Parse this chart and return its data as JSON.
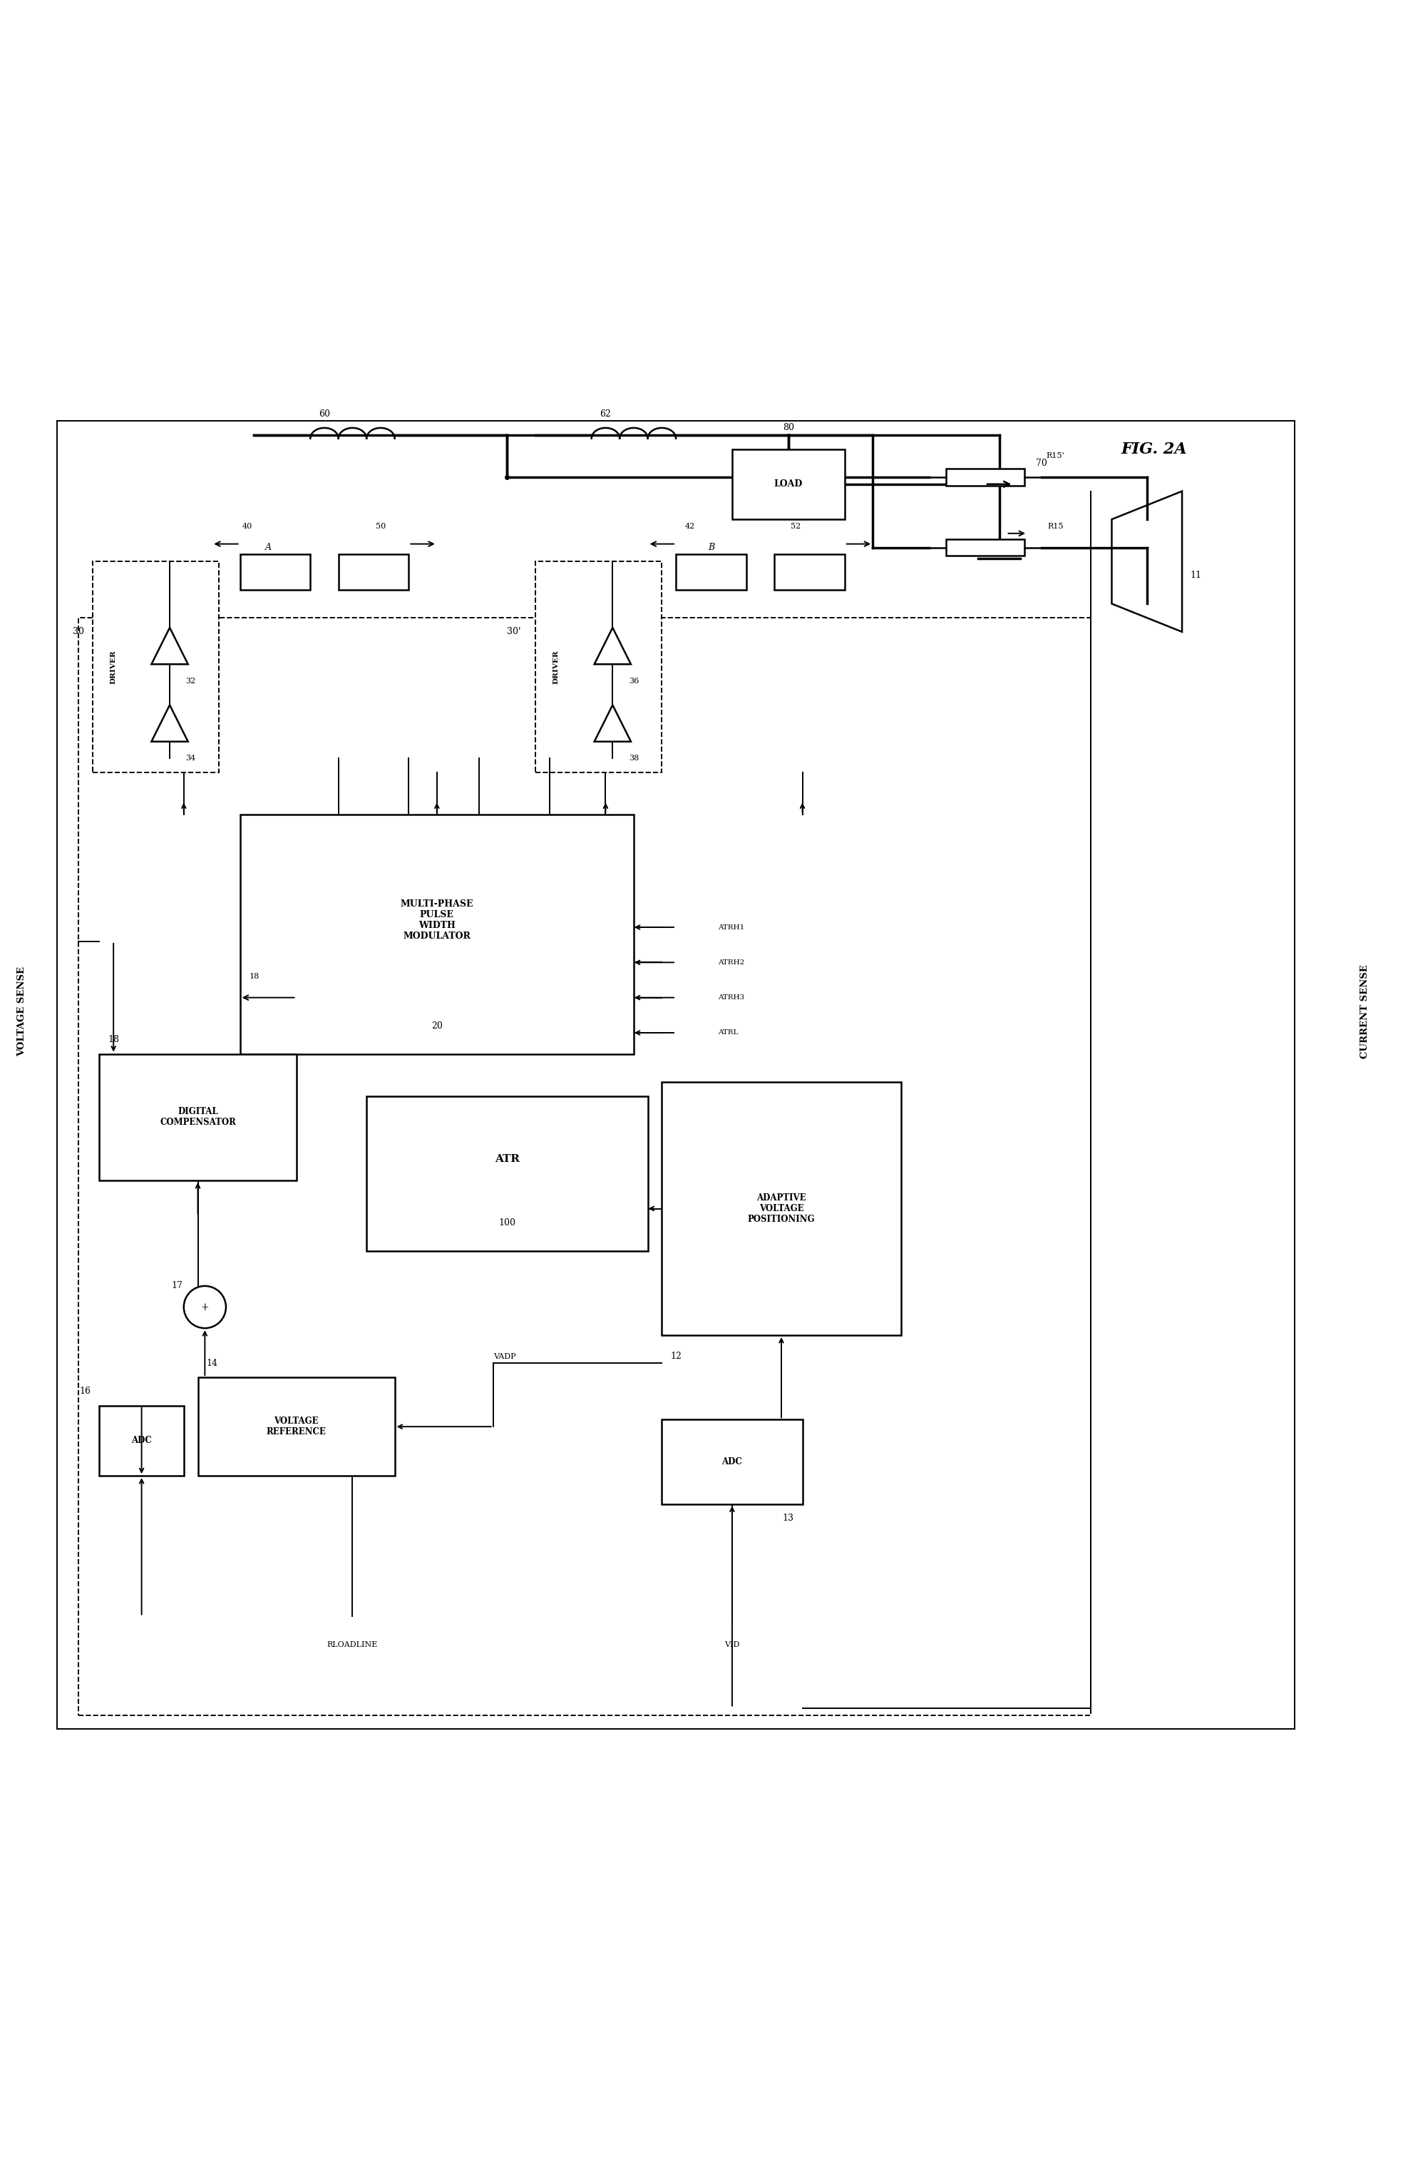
{
  "title": "FIG. 2A",
  "background_color": "#ffffff",
  "fig_width": 19.75,
  "fig_height": 30.34,
  "labels": {
    "voltage_sense": "VOLTAGE SENSE",
    "current_sense": "CURRENT SENSE",
    "load_box": "LOAD",
    "pwm_box": "MULTI-PHASE\nPULSE\nWIDTH\nMODULATOR",
    "atr_box": "ATR",
    "digital_comp": "DIGITAL\nCOMPENSATOR",
    "avp_box": "ADAPTIVE\nVOLTAGE\nPOSITIONING",
    "voltage_ref": "VOLTAGE\nREFERENCE",
    "adc_left": "ADC",
    "adc_right": "ADC",
    "driver_left": "DRIVER",
    "driver_right": "DRIVER"
  },
  "numbers": {
    "n80": "80",
    "n70": "70",
    "n60": "60",
    "n62": "62",
    "n40": "40",
    "n50": "50",
    "n42": "42",
    "n52": "52",
    "n30": "30",
    "n30p": "30'",
    "n32": "32",
    "n34": "34",
    "n36": "36",
    "n38": "38",
    "n20": "20",
    "n100": "100",
    "n18": "18",
    "n17": "17",
    "n16": "16",
    "n14": "14",
    "n12": "12",
    "n13": "13",
    "n11": "11",
    "nA": "A",
    "nB": "B",
    "nR15": "R15",
    "nR15p": "R15'",
    "nATRH1": "ATRH1",
    "nATRH2": "ATRH2",
    "nATRH3": "ATRH3",
    "nATRL": "ATRL",
    "nVADP": "VADP",
    "nVID": "VID",
    "nRLOADLINE": "RLOADLINE"
  }
}
